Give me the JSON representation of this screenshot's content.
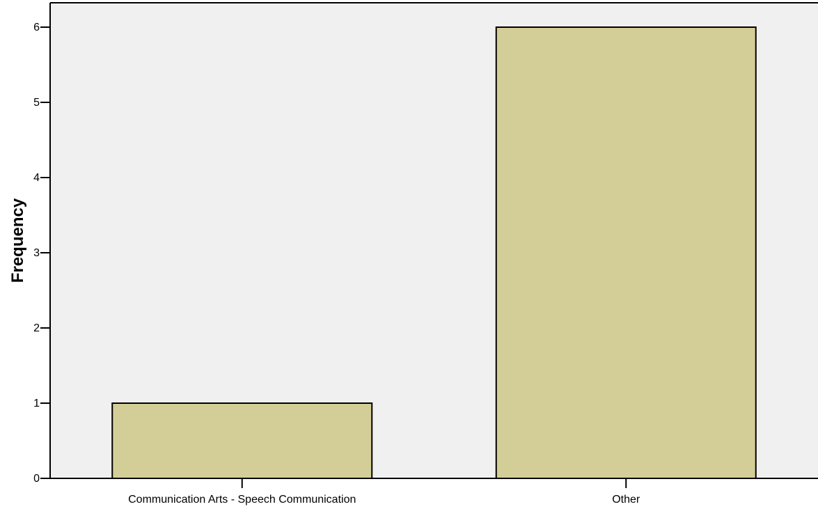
{
  "chart_data": {
    "type": "bar",
    "categories": [
      "Communication Arts - Speech Communication",
      "Other"
    ],
    "values": [
      1,
      6
    ],
    "title": "",
    "xlabel": "",
    "ylabel": "Frequency",
    "ylim": [
      0,
      6.3
    ],
    "yticks": [
      0,
      1,
      2,
      3,
      4,
      5,
      6
    ],
    "grid": false,
    "colors": {
      "plot_background": "#f0f0f0",
      "bar_fill": "#d3ce97",
      "bar_stroke": "#000000"
    }
  }
}
